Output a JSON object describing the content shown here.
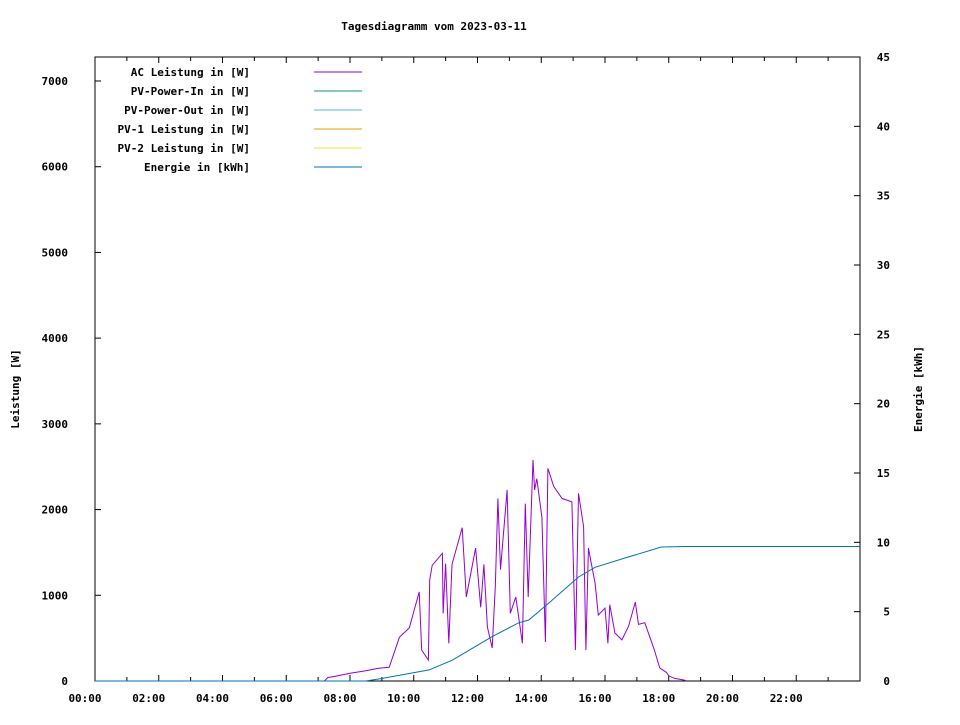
{
  "chart_data": {
    "type": "line",
    "title": "Tagesdiagramm vom 2023-03-11",
    "xlabel": "",
    "ylabel": "Leistung [W]",
    "y2label": "Energie [kWh]",
    "xlim": [
      0,
      24
    ],
    "ylim": [
      0,
      7280
    ],
    "y2lim": [
      0,
      45
    ],
    "grid": false,
    "legend_position": "top-left",
    "x_ticks": [
      "00:00",
      "02:00",
      "04:00",
      "06:00",
      "08:00",
      "10:00",
      "12:00",
      "14:00",
      "16:00",
      "18:00",
      "20:00",
      "22:00"
    ],
    "y_ticks": [
      0,
      1000,
      2000,
      3000,
      4000,
      5000,
      6000,
      7000
    ],
    "y2_ticks": [
      0,
      5,
      10,
      15,
      20,
      25,
      30,
      35,
      40,
      45
    ],
    "legend": [
      {
        "name": "AC Leistung in [W]",
        "color": "#9400d3"
      },
      {
        "name": "PV-Power-In in [W]",
        "color": "#009e73"
      },
      {
        "name": "PV-Power-Out in [W]",
        "color": "#56b4e9"
      },
      {
        "name": "PV-1 Leistung in [W]",
        "color": "#e69f00"
      },
      {
        "name": "PV-2 Leistung in [W]",
        "color": "#f0e442"
      },
      {
        "name": "Energie in [kWh]",
        "color": "#0072b2"
      }
    ],
    "series": [
      {
        "name": "AC Leistung in [W]",
        "axis": "y",
        "color": "#9400d3",
        "x_hours": [
          7.2,
          7.3,
          7.6,
          8.0,
          8.5,
          8.92,
          9.23,
          9.55,
          9.86,
          10.17,
          10.25,
          10.46,
          10.5,
          10.58,
          10.9,
          10.92,
          11.0,
          11.1,
          11.2,
          11.52,
          11.65,
          11.94,
          12.1,
          12.2,
          12.31,
          12.46,
          12.56,
          12.64,
          12.72,
          12.93,
          13.03,
          13.2,
          13.41,
          13.5,
          13.59,
          13.74,
          13.79,
          13.86,
          14.02,
          14.13,
          14.21,
          14.39,
          14.65,
          14.96,
          15.07,
          15.17,
          15.33,
          15.4,
          15.48,
          15.69,
          15.79,
          16.0,
          16.09,
          16.15,
          16.31,
          16.53,
          16.74,
          16.95,
          17.05,
          17.25,
          17.55,
          17.72,
          17.93,
          18.0,
          18.19,
          18.49,
          18.55
        ],
        "values": [
          0,
          40,
          60,
          90,
          120,
          150,
          160,
          510,
          620,
          1040,
          360,
          245,
          1180,
          1350,
          1490,
          790,
          1370,
          440,
          1360,
          1790,
          980,
          1550,
          860,
          1360,
          630,
          385,
          1100,
          2130,
          1300,
          2230,
          790,
          980,
          440,
          2070,
          980,
          2580,
          2230,
          2360,
          1910,
          455,
          2480,
          2270,
          2130,
          2090,
          360,
          2190,
          1800,
          360,
          1550,
          1140,
          770,
          850,
          440,
          890,
          560,
          480,
          640,
          920,
          660,
          680,
          360,
          150,
          100,
          60,
          30,
          10,
          0
        ]
      },
      {
        "name": "Energie in [kWh]",
        "axis": "y2",
        "color": "#0072b2",
        "x_hours": [
          0,
          8.5,
          8.92,
          10.48,
          11.21,
          12.46,
          13.29,
          13.61,
          14.23,
          15.17,
          15.69,
          16.74,
          17.77,
          18.55,
          24
        ],
        "values": [
          0,
          0,
          0.15,
          0.8,
          1.5,
          3.2,
          4.2,
          4.4,
          5.6,
          7.5,
          8.2,
          8.95,
          9.66,
          9.7,
          9.7
        ]
      }
    ]
  }
}
